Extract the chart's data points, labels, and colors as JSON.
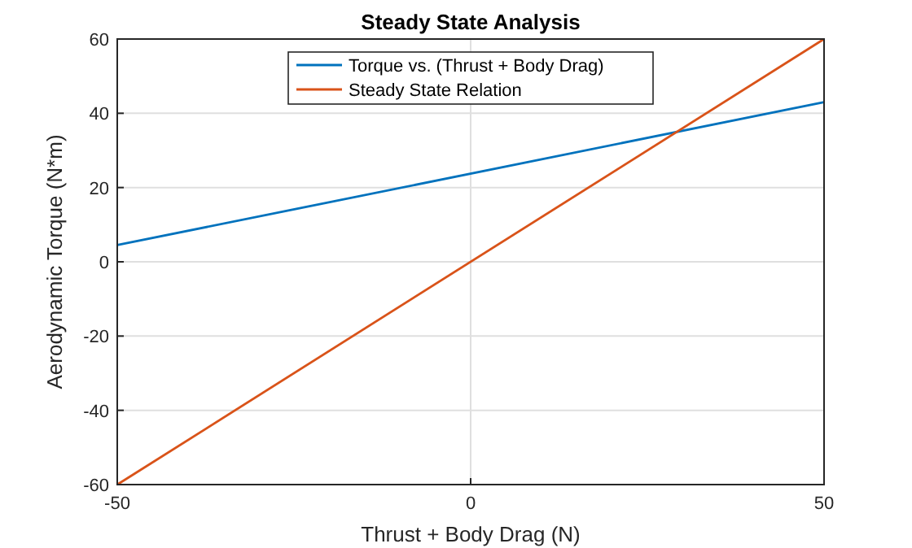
{
  "chart_data": {
    "type": "line",
    "title": "Steady State Analysis",
    "xlabel": "Thrust + Body Drag (N)",
    "ylabel": "Aerodynamic Torque (N*m)",
    "x": [
      -50,
      50
    ],
    "series": [
      {
        "name": "Torque vs. (Thrust + Body Drag)",
        "color": "#0072bd",
        "values": [
          4.5,
          43
        ]
      },
      {
        "name": "Steady State Relation",
        "color": "#d95319",
        "values": [
          -60,
          60
        ]
      }
    ],
    "xlim": [
      -50,
      50
    ],
    "xticks": [
      -50,
      0,
      50
    ],
    "ylim": [
      -60,
      60
    ],
    "yticks": [
      -60,
      -40,
      -20,
      0,
      20,
      40,
      60
    ],
    "grid": true,
    "legend": "top",
    "marker": "none",
    "line_style": "solid"
  }
}
